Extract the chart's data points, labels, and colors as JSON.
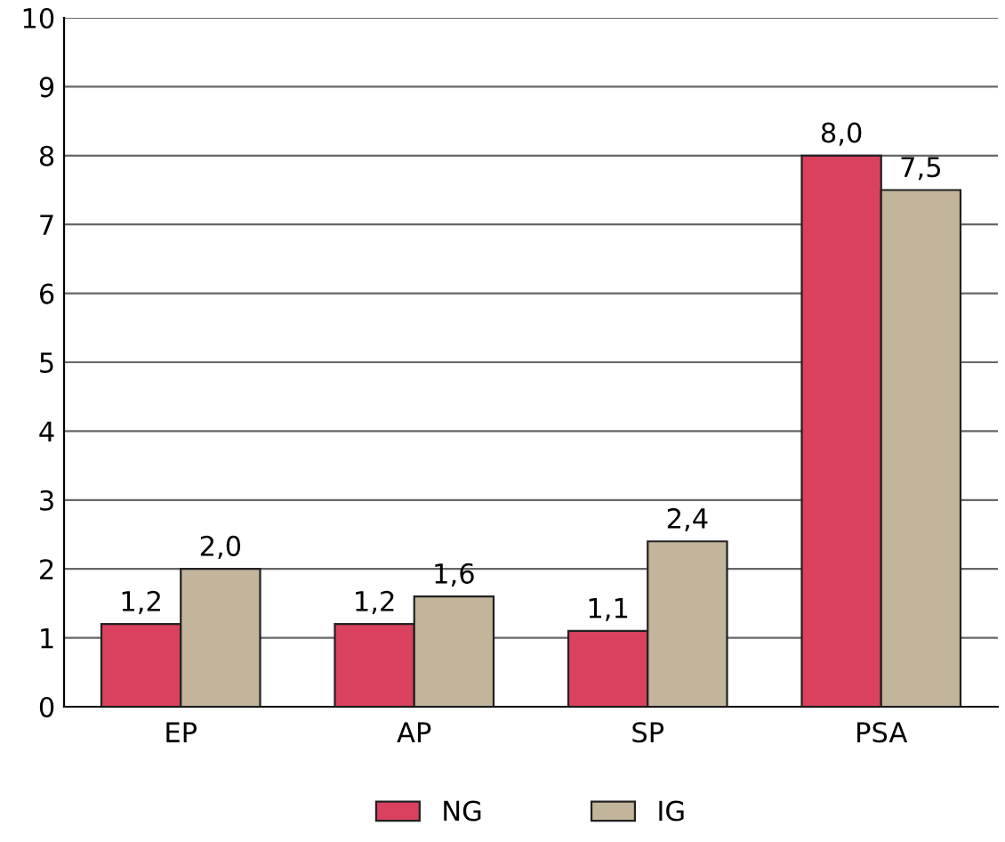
{
  "chart_data": {
    "type": "bar",
    "categories": [
      "EP",
      "AP",
      "SP",
      "PSA"
    ],
    "series": [
      {
        "name": "NG",
        "color": "#d9415f",
        "values": [
          1.2,
          1.2,
          1.1,
          8.0
        ],
        "value_labels": [
          "1,2",
          "1,2",
          "1,1",
          "8,0"
        ]
      },
      {
        "name": "IG",
        "color": "#c3b59b",
        "values": [
          2.0,
          1.6,
          2.4,
          7.5
        ],
        "value_labels": [
          "2,0",
          "1,6",
          "2,4",
          "7,5"
        ]
      }
    ],
    "ylim": [
      0,
      10
    ],
    "yticks": [
      0,
      1,
      2,
      3,
      4,
      5,
      6,
      7,
      8,
      9,
      10
    ],
    "grid": "y",
    "legend": "bottom"
  }
}
